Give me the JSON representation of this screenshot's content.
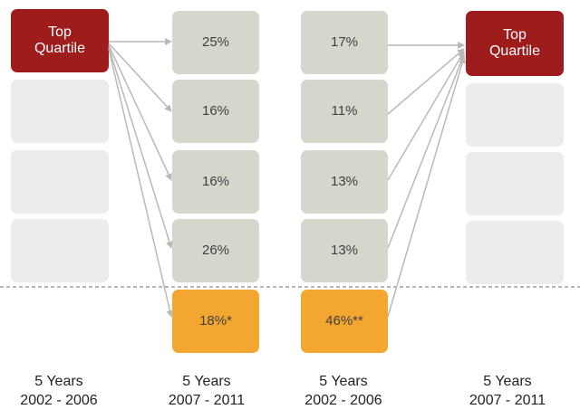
{
  "colors": {
    "top_quartile": "#9e1c1c",
    "percent_box": "#d7d6cd",
    "highlight_box": "#f3a730",
    "empty_box": "#ececea",
    "arrow": "#b9b9b9",
    "divider": "#8a8a8a"
  },
  "left_group": {
    "top_box": {
      "line1": "Top",
      "line2": "Quartile"
    },
    "period": {
      "years": "5 Years",
      "range": "2002 - 2006"
    }
  },
  "col2": {
    "values": [
      "25%",
      "16%",
      "16%",
      "26%"
    ],
    "highlight": "18%*",
    "period": {
      "years": "5 Years",
      "range": "2007 - 2011"
    }
  },
  "col3": {
    "values": [
      "17%",
      "11%",
      "13%",
      "13%"
    ],
    "highlight": "46%**",
    "period": {
      "years": "5 Years",
      "range": "2002 - 2006"
    }
  },
  "right_group": {
    "top_box": {
      "line1": "Top",
      "line2": "Quartile"
    },
    "period": {
      "years": "5 Years",
      "range": "2007 - 2011"
    }
  }
}
